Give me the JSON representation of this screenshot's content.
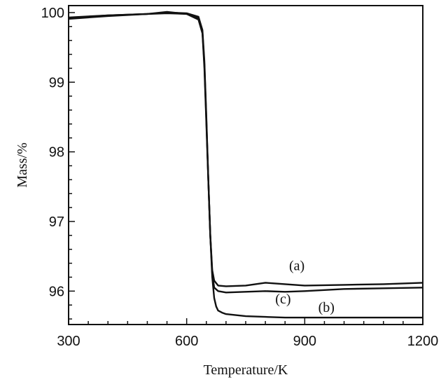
{
  "chart_data": {
    "type": "line",
    "title": "",
    "xlabel": "Temperature/K",
    "ylabel": "Mass/%",
    "xlim": [
      300,
      1200
    ],
    "ylim": [
      95.52,
      100.1
    ],
    "xticks": [
      300,
      600,
      900,
      1200
    ],
    "yticks": [
      96,
      97,
      98,
      99,
      100
    ],
    "grid": false,
    "legend": "none",
    "line_color": "#111111",
    "annotations": [
      {
        "text": "(a)",
        "x": 880,
        "y": 96.3
      },
      {
        "text": "(c)",
        "x": 845,
        "y": 95.82
      },
      {
        "text": "(b)",
        "x": 955,
        "y": 95.7
      }
    ],
    "series": [
      {
        "x": [
          300,
          400,
          500,
          550,
          600,
          630,
          640,
          645,
          650,
          655,
          660,
          665,
          670,
          680,
          700,
          750,
          800,
          850,
          900,
          1000,
          1100,
          1200
        ],
        "y": [
          99.91,
          99.95,
          99.98,
          99.99,
          99.98,
          99.9,
          99.7,
          99.2,
          98.4,
          97.6,
          96.8,
          96.3,
          96.15,
          96.08,
          96.07,
          96.08,
          96.12,
          96.1,
          96.08,
          96.09,
          96.1,
          96.12
        ]
      },
      {
        "x": [
          300,
          400,
          500,
          550,
          600,
          630,
          640,
          645,
          650,
          655,
          660,
          665,
          670,
          675,
          680,
          690,
          700,
          750,
          800,
          850,
          900,
          1000,
          1100,
          1200
        ],
        "y": [
          99.93,
          99.96,
          99.98,
          100.0,
          99.99,
          99.94,
          99.75,
          99.3,
          98.5,
          97.6,
          96.8,
          96.2,
          95.9,
          95.78,
          95.72,
          95.69,
          95.67,
          95.64,
          95.63,
          95.62,
          95.62,
          95.62,
          95.62,
          95.62
        ]
      },
      {
        "x": [
          300,
          400,
          500,
          550,
          600,
          630,
          640,
          645,
          650,
          655,
          660,
          665,
          670,
          680,
          700,
          750,
          800,
          850,
          900,
          1000,
          1100,
          1200
        ],
        "y": [
          99.92,
          99.96,
          99.98,
          100.01,
          99.98,
          99.92,
          99.72,
          99.25,
          98.45,
          97.6,
          96.8,
          96.25,
          96.05,
          96.0,
          95.98,
          95.99,
          96.0,
          95.99,
          96.0,
          96.03,
          96.04,
          96.05
        ]
      }
    ]
  }
}
